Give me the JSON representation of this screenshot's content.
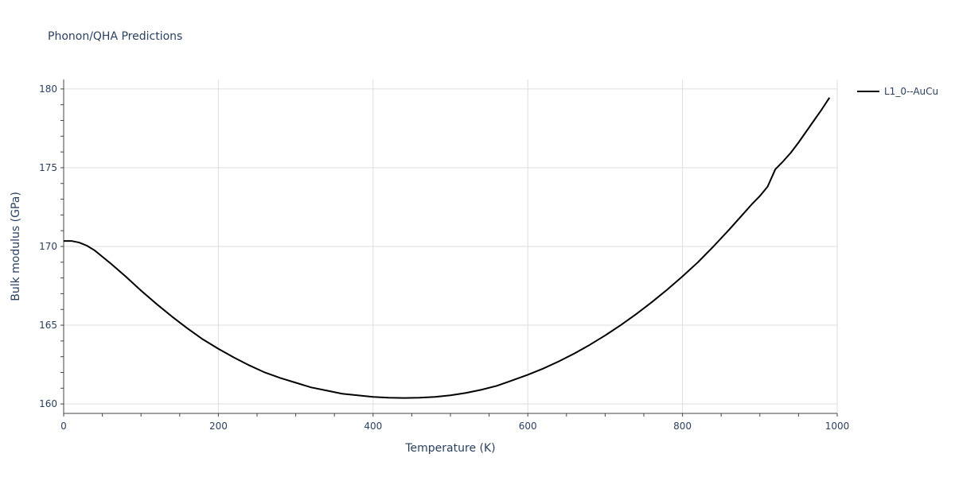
{
  "chart_data": {
    "type": "line",
    "title": "Phonon/QHA Predictions",
    "xlabel": "Temperature (K)",
    "ylabel": "Bulk modulus (GPa)",
    "xlim": [
      0,
      1000
    ],
    "ylim": [
      159.4,
      180.6
    ],
    "xticks": [
      0,
      200,
      400,
      600,
      800,
      1000
    ],
    "yticks": [
      160,
      165,
      170,
      175,
      180
    ],
    "grid": true,
    "legend_position": "top-right",
    "series": [
      {
        "name": "L1_0--AuCu",
        "color": "#000000",
        "x": [
          0,
          10,
          20,
          30,
          40,
          50,
          60,
          80,
          100,
          120,
          140,
          160,
          180,
          200,
          220,
          240,
          260,
          280,
          300,
          320,
          340,
          360,
          380,
          400,
          420,
          440,
          460,
          480,
          500,
          520,
          540,
          560,
          580,
          600,
          620,
          640,
          660,
          680,
          700,
          720,
          740,
          760,
          780,
          800,
          820,
          840,
          860,
          880,
          890,
          900,
          910,
          920,
          930,
          940,
          950,
          960,
          970,
          980,
          990
        ],
        "y": [
          170.35,
          170.35,
          170.25,
          170.05,
          169.75,
          169.35,
          168.95,
          168.1,
          167.2,
          166.35,
          165.55,
          164.8,
          164.1,
          163.5,
          162.95,
          162.45,
          162.0,
          161.65,
          161.35,
          161.05,
          160.85,
          160.65,
          160.55,
          160.45,
          160.4,
          160.38,
          160.4,
          160.45,
          160.55,
          160.7,
          160.9,
          161.15,
          161.5,
          161.85,
          162.25,
          162.7,
          163.2,
          163.75,
          164.35,
          165.0,
          165.7,
          166.45,
          167.25,
          168.1,
          169.0,
          170.0,
          171.05,
          172.15,
          172.7,
          173.2,
          173.8,
          174.9,
          175.4,
          175.95,
          176.6,
          177.3,
          178.0,
          178.7,
          179.45
        ]
      }
    ]
  }
}
